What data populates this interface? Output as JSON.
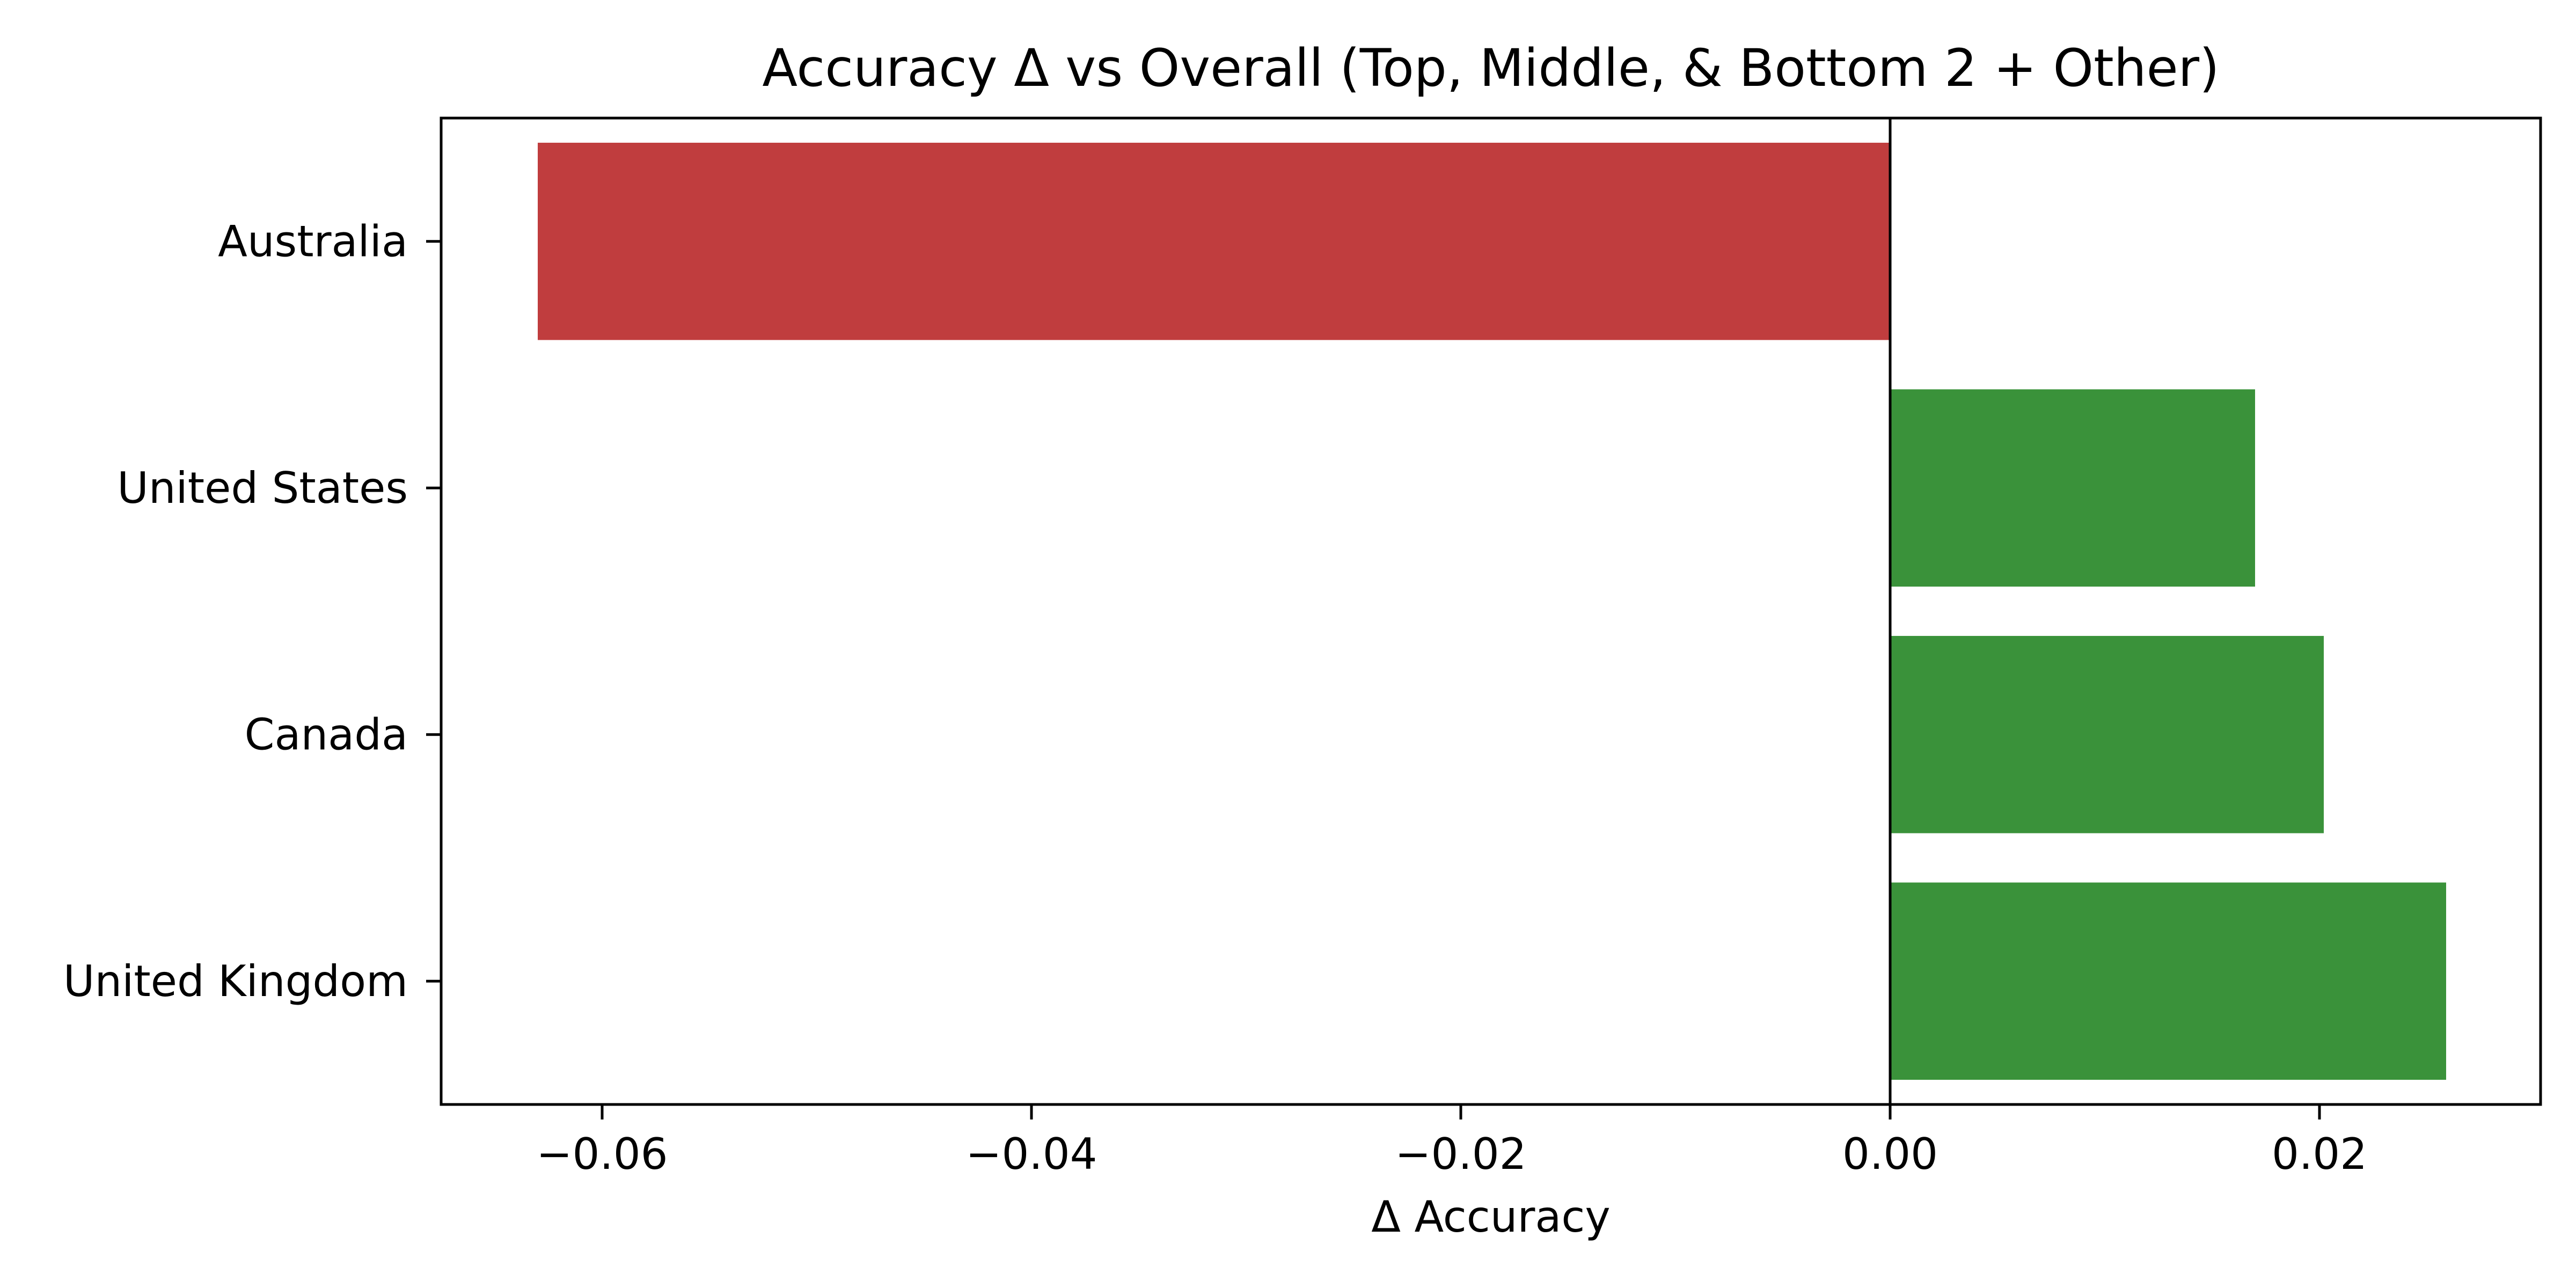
{
  "chart_data": {
    "type": "bar",
    "orientation": "horizontal",
    "title": "Accuracy Δ vs Overall (Top, Middle, & Bottom 2 + Other)",
    "xlabel": "Δ Accuracy",
    "ylabel": "",
    "categories": [
      "Australia",
      "United States",
      "Canada",
      "United Kingdom"
    ],
    "values": [
      -0.063,
      0.017,
      0.0202,
      0.0259
    ],
    "bar_colors": [
      "#c03d3e",
      "#3a923a",
      "#3a923a",
      "#3a923a"
    ],
    "xlim": [
      -0.0675,
      0.0303
    ],
    "xticks": [
      -0.06,
      -0.04,
      -0.02,
      0.0,
      0.02
    ],
    "xtick_labels": [
      "−0.06",
      "−0.04",
      "−0.02",
      "0.00",
      "0.02"
    ],
    "zero_line": true,
    "grid": false,
    "legend": false
  }
}
